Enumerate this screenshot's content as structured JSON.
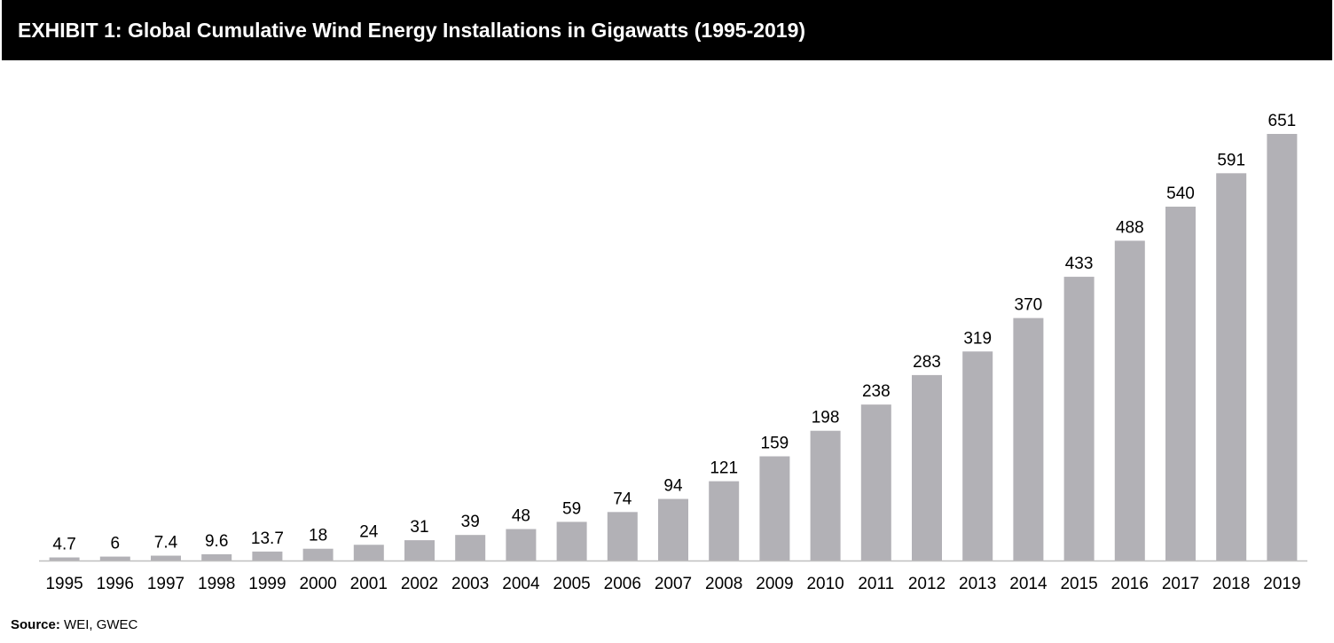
{
  "header": {
    "title": "EXHIBIT 1: Global Cumulative Wind Energy Installations in Gigawatts (1995-2019)"
  },
  "footer": {
    "source_label": "Source:",
    "source_text": "WEI, GWEC"
  },
  "colors": {
    "bar": "#b2b1b6",
    "axis": "#bfbfbf",
    "title_bg": "#000000",
    "title_text": "#ffffff"
  },
  "chart_data": {
    "type": "bar",
    "title": "EXHIBIT 1: Global Cumulative Wind Energy Installations in Gigawatts (1995-2019)",
    "xlabel": "",
    "ylabel": "",
    "grid": false,
    "legend": "none",
    "categories": [
      "1995",
      "1996",
      "1997",
      "1998",
      "1999",
      "2000",
      "2001",
      "2002",
      "2003",
      "2004",
      "2005",
      "2006",
      "2007",
      "2008",
      "2009",
      "2010",
      "2011",
      "2012",
      "2013",
      "2014",
      "2015",
      "2016",
      "2017",
      "2018",
      "2019"
    ],
    "values": [
      4.7,
      6,
      7.4,
      9.6,
      13.7,
      18,
      24,
      31,
      39,
      48,
      59,
      74,
      94,
      121,
      159,
      198,
      238,
      283,
      319,
      370,
      433,
      488,
      540,
      591,
      651
    ],
    "data_labels": [
      "4.7",
      "6",
      "7.4",
      "9.6",
      "13.7",
      "18",
      "24",
      "31",
      "39",
      "48",
      "59",
      "74",
      "94",
      "121",
      "159",
      "198",
      "238",
      "283",
      "319",
      "370",
      "433",
      "488",
      "540",
      "591",
      "651"
    ],
    "ylim": [
      0,
      651
    ]
  }
}
